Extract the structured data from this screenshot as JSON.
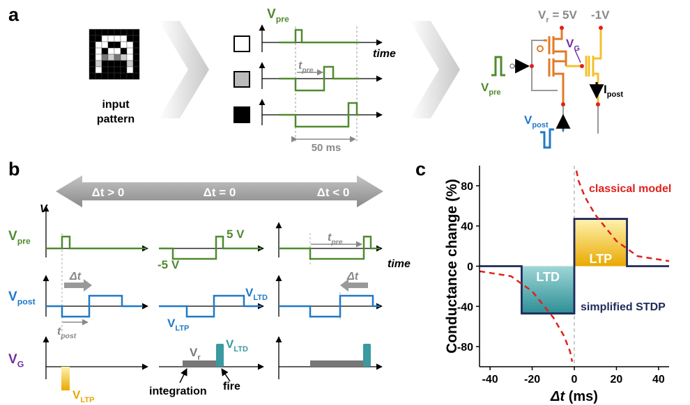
{
  "panel_a": {
    "label": "a",
    "input_pattern": [
      "input",
      "pattern"
    ],
    "v_pre": {
      "main": "V",
      "sub": "pre"
    },
    "time": "time",
    "t_pre": {
      "main": "t",
      "sub": "pre"
    },
    "duration": "50 ms",
    "v_r": {
      "main": "V",
      "sub": "r",
      "rest": " = 5V"
    },
    "v_neg": "-1V",
    "v_g": {
      "main": "V",
      "sub": "G"
    },
    "circuit_v_pre": {
      "main": "V",
      "sub": "pre"
    },
    "v_post": {
      "main": "V",
      "sub": "post"
    },
    "i_post": {
      "main": "I",
      "sub": "post"
    }
  },
  "panel_b": {
    "label": "b",
    "arrow_labels": [
      "Δt > 0",
      "Δt = 0",
      "Δt < 0"
    ],
    "v_axis": "V",
    "v_pre": {
      "main": "V",
      "sub": "pre"
    },
    "plus_5v": "5 V",
    "minus_5v": "-5 V",
    "t_pre": {
      "main": "t",
      "sub": "pre"
    },
    "time": "time",
    "v_post": {
      "main": "V",
      "sub": "post"
    },
    "dt_left": "Δt",
    "t_post": {
      "main": "t",
      "sub": "post"
    },
    "v_ltd": {
      "main": "V",
      "sub": "LTD"
    },
    "v_ltp": {
      "main": "V",
      "sub": "LTP"
    },
    "dt_right": "Δt",
    "v_g": {
      "main": "V",
      "sub": "G"
    },
    "v_ltp_g": {
      "main": "V",
      "sub": "LTP"
    },
    "v_r": {
      "main": "V",
      "sub": "r"
    },
    "v_ltd_g": {
      "main": "V",
      "sub": "LTD"
    },
    "integration": "integration",
    "fire": "fire"
  },
  "panel_c_label": "c",
  "chart_data": {
    "type": "line",
    "xlabel": {
      "symbol": "Δt",
      "rest": " (ms)"
    },
    "ylabel": "Conductance change (%)",
    "xlim": [
      -45,
      45
    ],
    "ylim": [
      -100,
      100
    ],
    "xticks": [
      -40,
      -20,
      0,
      20,
      40
    ],
    "yticks": [
      -80,
      -40,
      0,
      40,
      80
    ],
    "annotations": [
      "LTP",
      "LTD"
    ],
    "series": [
      {
        "name": "simplified STDP",
        "color": "#1f2a5a",
        "linestyle": "solid",
        "x": [
          -45,
          -25,
          -25,
          0,
          0,
          25,
          25,
          45
        ],
        "values": [
          0,
          0,
          -47,
          -47,
          47,
          47,
          0,
          0
        ]
      },
      {
        "name": "classical model",
        "color": "#e0201c",
        "linestyle": "dashed",
        "x": [
          -45,
          -30,
          -20,
          -10,
          -5,
          -2,
          -1,
          null,
          1,
          2,
          5,
          10,
          20,
          30,
          45
        ],
        "values": [
          -5,
          -10,
          -25,
          -51,
          -69,
          -85,
          -95,
          null,
          95,
          85,
          69,
          51,
          25,
          10,
          5
        ]
      }
    ]
  }
}
